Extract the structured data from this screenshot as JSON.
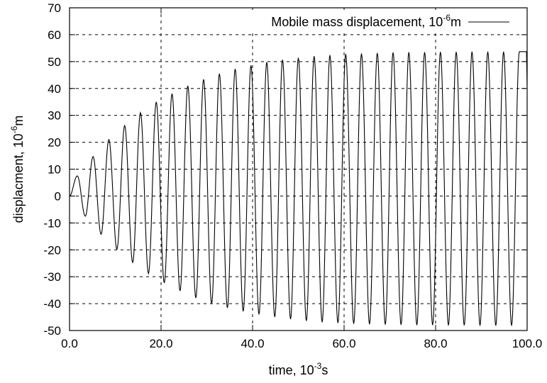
{
  "chart_data": {
    "type": "line",
    "xlabel": {
      "main": "time, 10",
      "sup": "-3",
      "unit": "s"
    },
    "ylabel": {
      "main": "displacment, 10",
      "sup": "-6",
      "unit": "m"
    },
    "xlim": [
      0,
      100
    ],
    "ylim": [
      -50,
      70
    ],
    "x_ticks": [
      0,
      20,
      40,
      60,
      80,
      100
    ],
    "x_tick_labels": [
      "0.0",
      "20.0",
      "40.0",
      "60.0",
      "80.0",
      "100.0"
    ],
    "y_ticks": [
      -50,
      -40,
      -30,
      -20,
      -10,
      0,
      10,
      20,
      30,
      40,
      50,
      60,
      70
    ],
    "y_tick_labels": [
      "-50",
      "-40",
      "-30",
      "-20",
      "-10",
      "0",
      "10",
      "20",
      "30",
      "40",
      "50",
      "60",
      "70"
    ],
    "grid": true,
    "legend_position": "top-right",
    "series": [
      {
        "name": {
          "main": "Mobile mass displacement, 10",
          "sup": "-6",
          "unit": "m"
        },
        "oscillation_period": 3.45,
        "peaks": [
          [
            1.7,
            7.5
          ],
          [
            5.15,
            14.7
          ],
          [
            8.6,
            21
          ],
          [
            12.05,
            26.2
          ],
          [
            15.5,
            31
          ],
          [
            18.95,
            35
          ],
          [
            22.4,
            38.1
          ],
          [
            25.85,
            41
          ],
          [
            29.3,
            43.4
          ],
          [
            32.75,
            45.5
          ],
          [
            36.2,
            47.3
          ],
          [
            39.65,
            48.6
          ],
          [
            43.1,
            49.8
          ],
          [
            46.55,
            50.7
          ],
          [
            50.0,
            51.4
          ],
          [
            53.45,
            52
          ],
          [
            56.9,
            52.4
          ],
          [
            60.35,
            52.8
          ],
          [
            63.8,
            53
          ],
          [
            67.25,
            53.2
          ],
          [
            70.7,
            53.4
          ],
          [
            74.15,
            53.5
          ],
          [
            77.6,
            53.5
          ],
          [
            81.05,
            53.6
          ],
          [
            84.5,
            53.6
          ],
          [
            87.95,
            53.7
          ],
          [
            91.4,
            53.7
          ],
          [
            94.85,
            53.7
          ],
          [
            98.3,
            53.7
          ]
        ],
        "troughs": [
          [
            3.45,
            -7.5
          ],
          [
            6.9,
            -14.2
          ],
          [
            10.35,
            -19.8
          ],
          [
            13.8,
            -24.7
          ],
          [
            17.25,
            -28.8
          ],
          [
            20.7,
            -32.3
          ],
          [
            24.15,
            -35.3
          ],
          [
            27.6,
            -37.9
          ],
          [
            31.05,
            -40
          ],
          [
            34.5,
            -41.6
          ],
          [
            37.95,
            -42.9
          ],
          [
            41.4,
            -44
          ],
          [
            44.85,
            -45
          ],
          [
            48.3,
            -45.8
          ],
          [
            51.75,
            -46.4
          ],
          [
            55.2,
            -46.9
          ],
          [
            58.65,
            -47.2
          ],
          [
            62.1,
            -47.5
          ],
          [
            65.55,
            -47.7
          ],
          [
            69.0,
            -47.8
          ],
          [
            72.45,
            -47.9
          ],
          [
            75.9,
            -48
          ],
          [
            79.35,
            -48
          ],
          [
            82.8,
            -48.1
          ],
          [
            86.25,
            -48.1
          ],
          [
            89.7,
            -48.2
          ],
          [
            93.15,
            -48.2
          ],
          [
            96.6,
            -48.2
          ]
        ],
        "end_point": [
          100,
          41
        ]
      }
    ]
  }
}
